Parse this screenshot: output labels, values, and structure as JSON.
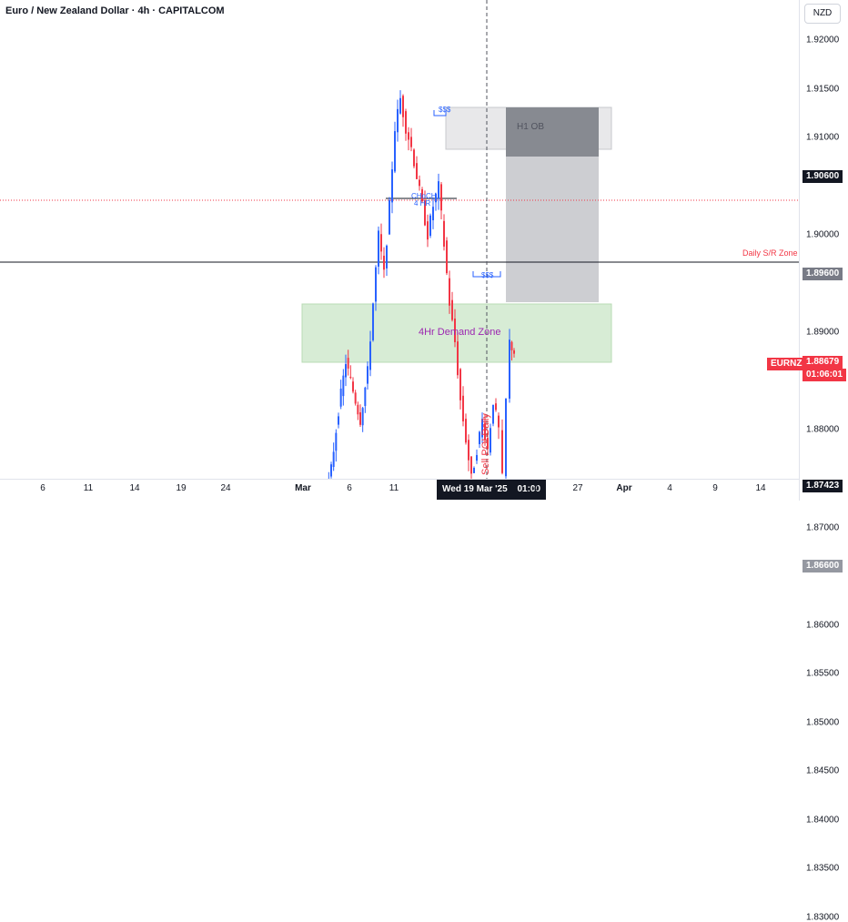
{
  "header": {
    "title": "Euro / New Zealand Dollar · 4h · CAPITALCOM",
    "currency": "NZD"
  },
  "price_axis": {
    "ticks": [
      {
        "label": "1.92000",
        "price": 1.92
      },
      {
        "label": "1.91500",
        "price": 1.915
      },
      {
        "label": "1.91000",
        "price": 1.91
      },
      {
        "label": "1.90000",
        "price": 1.9
      },
      {
        "label": "1.89000",
        "price": 1.89
      },
      {
        "label": "1.88000",
        "price": 1.88
      },
      {
        "label": "1.87000",
        "price": 1.87
      },
      {
        "label": "1.86000",
        "price": 1.86
      },
      {
        "label": "1.85500",
        "price": 1.855
      },
      {
        "label": "1.85000",
        "price": 1.85
      },
      {
        "label": "1.84500",
        "price": 1.845
      },
      {
        "label": "1.84000",
        "price": 1.84
      },
      {
        "label": "1.83500",
        "price": 1.835
      },
      {
        "label": "1.83000",
        "price": 1.83
      }
    ],
    "highlight_tags": [
      {
        "label": "1.90600",
        "price": 1.906,
        "color": "#131722"
      },
      {
        "label": "1.89600",
        "price": 1.896,
        "color": "#787b86"
      },
      {
        "label": "1.87423",
        "price": 1.87423,
        "color": "#131722"
      },
      {
        "label": "1.86600",
        "price": 1.866,
        "color": "#9598a1"
      }
    ],
    "symbol_tag": {
      "symbol": "EURNZD",
      "price_label": "1.88679",
      "countdown": "01:06:01",
      "price": 1.88679,
      "color": "#f23645"
    }
  },
  "time_axis": {
    "labels": [
      "6",
      "11",
      "14",
      "19",
      "24",
      "Mar",
      "6",
      "11",
      "27",
      "Apr",
      "4",
      "9",
      "14"
    ],
    "bold_labels": [
      "Mar",
      "Apr"
    ],
    "cursor_date": "Wed 19 Mar '25",
    "cursor_time": "01:00",
    "partial_label": "4"
  },
  "annotations": {
    "h1_ob": "H1 OB",
    "demand_zone": "4Hr Demand Zone",
    "daily_sr": "Daily S/R Zone",
    "sell_poi": "Sell POI Daily",
    "choch": "CHoCH",
    "choch_tf": "4 HR",
    "liquidity_top": "$$$",
    "liquidity_bottom": "$$$"
  },
  "colors": {
    "up": "#2962ff",
    "down": "#f23645",
    "demand_fill": "#d7ecd5",
    "demand_text": "#9c27b0",
    "ob_fill": "#878a91",
    "ob_light": "#e8e8ea",
    "sr_text": "#f23645",
    "sell_text": "#f23645"
  }
}
